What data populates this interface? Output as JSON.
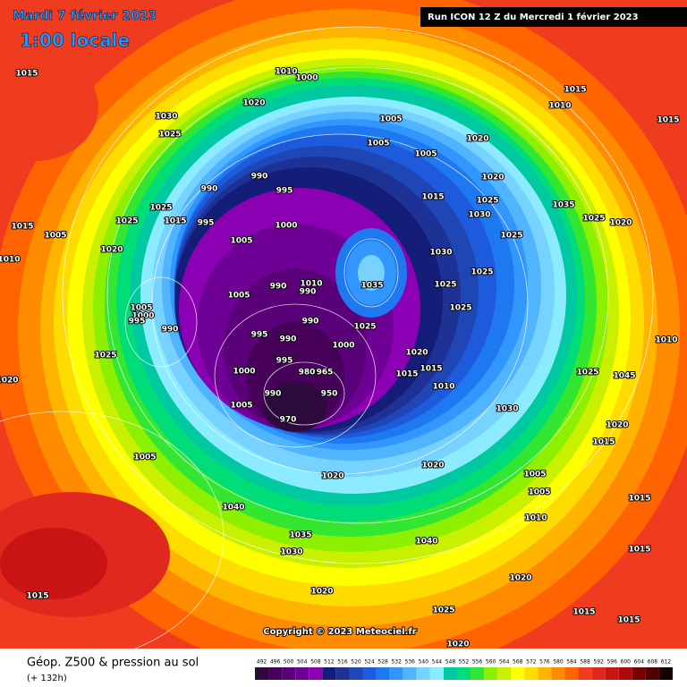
{
  "header": {
    "date": "Mardi 7 février 2023",
    "time": "1:00 locale",
    "run": "Run ICON 12 Z du Mercredi 1 février 2023"
  },
  "map": {
    "copyright": "Copyright © 2023 Meteociel.fr",
    "pressure_labels": [
      "1015",
      "1010",
      "1000",
      "1015",
      "1010",
      "1015",
      "1030",
      "1025",
      "1020",
      "1005",
      "1005",
      "1020",
      "1005",
      "990",
      "995",
      "990",
      "1015",
      "1020",
      "1025",
      "1030",
      "1035",
      "1025",
      "1020",
      "1025",
      "1015",
      "1025",
      "995",
      "1000",
      "1005",
      "1015",
      "1005",
      "1020",
      "1010",
      "1030",
      "1025",
      "1035",
      "1010",
      "990",
      "990",
      "1005",
      "1025",
      "1025",
      "1025",
      "1005",
      "1000",
      "995",
      "990",
      "990",
      "995",
      "990",
      "1000",
      "1025",
      "1025",
      "1020",
      "1015",
      "1015",
      "1010",
      "995",
      "1000",
      "980",
      "965",
      "950",
      "990",
      "970",
      "1005",
      "1030",
      "1025",
      "1045",
      "1020",
      "1015",
      "1005",
      "1020",
      "1020",
      "1005",
      "1005",
      "1015",
      "1040",
      "1010",
      "1035",
      "1030",
      "1040",
      "1015",
      "1020",
      "1015",
      "1020",
      "1025",
      "1015",
      "1015",
      "1020",
      "1020",
      "1010"
    ]
  },
  "legend": {
    "title": "Géop. Z500 & pression au sol",
    "lead_time": "(+ 132h)",
    "colorbar": {
      "values": [
        492,
        496,
        500,
        504,
        508,
        512,
        516,
        520,
        524,
        528,
        532,
        536,
        540,
        544,
        548,
        552,
        556,
        560,
        564,
        568,
        572,
        576,
        580,
        584,
        588,
        592,
        596,
        600,
        604,
        608,
        612
      ],
      "colors": [
        "#2d0a3c",
        "#46005a",
        "#5a0078",
        "#6e0096",
        "#8c00b4",
        "#141e78",
        "#1e3296",
        "#1e46b4",
        "#1e5adc",
        "#1e78f0",
        "#3296ff",
        "#50b4ff",
        "#78d2ff",
        "#8cebff",
        "#00c8a0",
        "#00dc78",
        "#32e632",
        "#8cf000",
        "#c8f000",
        "#ffff00",
        "#ffdc00",
        "#ffb400",
        "#ff8c00",
        "#ff6400",
        "#f03c1e",
        "#e1281e",
        "#c81414",
        "#aa0a0a",
        "#780000",
        "#500000",
        "#140000"
      ]
    }
  }
}
